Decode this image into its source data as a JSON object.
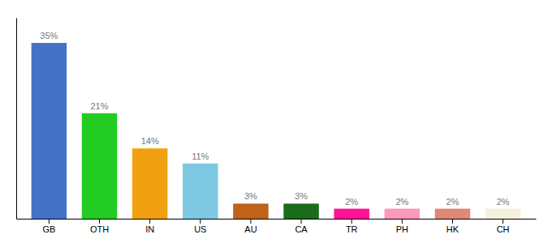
{
  "chart_data": {
    "type": "bar",
    "categories": [
      "GB",
      "OTH",
      "IN",
      "US",
      "AU",
      "CA",
      "TR",
      "PH",
      "HK",
      "CH"
    ],
    "values": [
      35,
      21,
      14,
      11,
      3,
      3,
      2,
      2,
      2,
      2
    ],
    "value_labels": [
      "35%",
      "21%",
      "14%",
      "11%",
      "3%",
      "3%",
      "2%",
      "2%",
      "2%",
      "2%"
    ],
    "colors": [
      "#4472c4",
      "#22cc22",
      "#f0a010",
      "#7ec8e3",
      "#c0621a",
      "#1a6b1a",
      "#ff1493",
      "#ff99bb",
      "#e08878",
      "#f5f0dc"
    ],
    "ylim": [
      0,
      40
    ],
    "data_labels": true,
    "tick_labels": "x",
    "grid": false
  }
}
